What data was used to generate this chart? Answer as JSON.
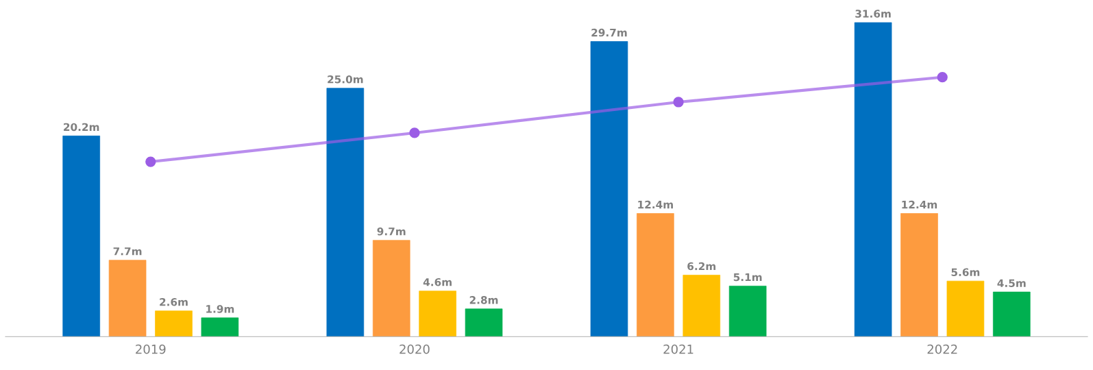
{
  "chart_data": {
    "type": "bar",
    "categories": [
      "2019",
      "2020",
      "2021",
      "2022"
    ],
    "series": [
      {
        "color": "#0070c0",
        "values": [
          20.2,
          25.0,
          29.7,
          31.6
        ],
        "value_labels": [
          "20.2m",
          "25.0m",
          "29.7m",
          "31.6m"
        ]
      },
      {
        "color": "#fd9b3f",
        "values": [
          7.7,
          9.7,
          12.4,
          12.4
        ],
        "value_labels": [
          "7.7m",
          "9.7m",
          "12.4m",
          "12.4m"
        ]
      },
      {
        "color": "#ffc000",
        "values": [
          2.6,
          4.6,
          6.2,
          5.6
        ],
        "value_labels": [
          "2.6m",
          "4.6m",
          "6.2m",
          "5.6m"
        ]
      },
      {
        "color": "#00b050",
        "values": [
          1.9,
          2.8,
          5.1,
          4.5
        ],
        "value_labels": [
          "1.9m",
          "2.8m",
          "5.1m",
          "4.5m"
        ]
      },
      {
        "type": "line",
        "color": "#9b5de5",
        "values": [
          17.6,
          20.5,
          23.6,
          26.1
        ],
        "marker": "circle"
      }
    ],
    "grid": false,
    "legend": false
  }
}
